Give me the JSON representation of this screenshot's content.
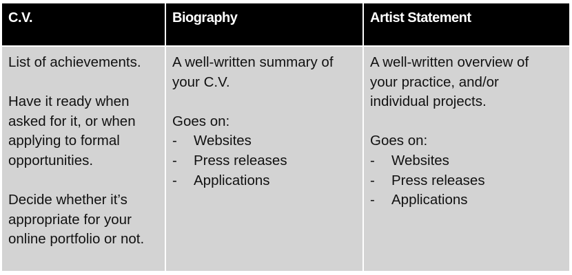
{
  "columns": [
    {
      "header": "C.V.",
      "paragraphs": [
        "List of achievements.",
        "Have it ready when asked for it, or when applying to formal opportunities.",
        "Decide whether it’s appropriate for your online portfolio or not."
      ]
    },
    {
      "header": "Biography",
      "paragraphs": [
        "A well-written summary of your C.V.",
        "Goes on:"
      ],
      "bullets": [
        "Websites",
        "Press releases",
        "Applications"
      ]
    },
    {
      "header": "Artist Statement",
      "paragraphs": [
        "A well-written overview of your practice, and/or individual projects.",
        "Goes on:"
      ],
      "bullets": [
        "Websites",
        "Press releases",
        "Applications"
      ]
    }
  ],
  "bullet_marker": "-",
  "colors": {
    "header_bg": "#000000",
    "cell_bg": "#d3d3d3"
  }
}
